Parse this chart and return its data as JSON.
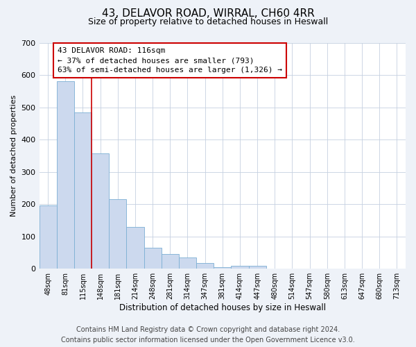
{
  "title": "43, DELAVOR ROAD, WIRRAL, CH60 4RR",
  "subtitle": "Size of property relative to detached houses in Heswall",
  "xlabel": "Distribution of detached houses by size in Heswall",
  "ylabel": "Number of detached properties",
  "bar_labels": [
    "48sqm",
    "81sqm",
    "115sqm",
    "148sqm",
    "181sqm",
    "214sqm",
    "248sqm",
    "281sqm",
    "314sqm",
    "347sqm",
    "381sqm",
    "414sqm",
    "447sqm",
    "480sqm",
    "514sqm",
    "547sqm",
    "580sqm",
    "613sqm",
    "647sqm",
    "680sqm",
    "713sqm"
  ],
  "bar_values": [
    195,
    580,
    485,
    357,
    215,
    130,
    65,
    46,
    35,
    17,
    5,
    10,
    8,
    0,
    0,
    0,
    0,
    0,
    0,
    0,
    0
  ],
  "bar_color": "#ccd9ee",
  "bar_edge_color": "#7bafd4",
  "property_line_x": 2,
  "property_line_label": "43 DELAVOR ROAD: 116sqm",
  "annotation_line1": "← 37% of detached houses are smaller (793)",
  "annotation_line2": "63% of semi-detached houses are larger (1,326) →",
  "annotation_box_color": "#ffffff",
  "annotation_box_edge_color": "#cc0000",
  "property_line_color": "#cc0000",
  "ylim": [
    0,
    700
  ],
  "yticks": [
    0,
    100,
    200,
    300,
    400,
    500,
    600,
    700
  ],
  "footer_line1": "Contains HM Land Registry data © Crown copyright and database right 2024.",
  "footer_line2": "Contains public sector information licensed under the Open Government Licence v3.0.",
  "background_color": "#eef2f8",
  "plot_background_color": "#ffffff",
  "title_fontsize": 11,
  "subtitle_fontsize": 9,
  "footer_fontsize": 7
}
